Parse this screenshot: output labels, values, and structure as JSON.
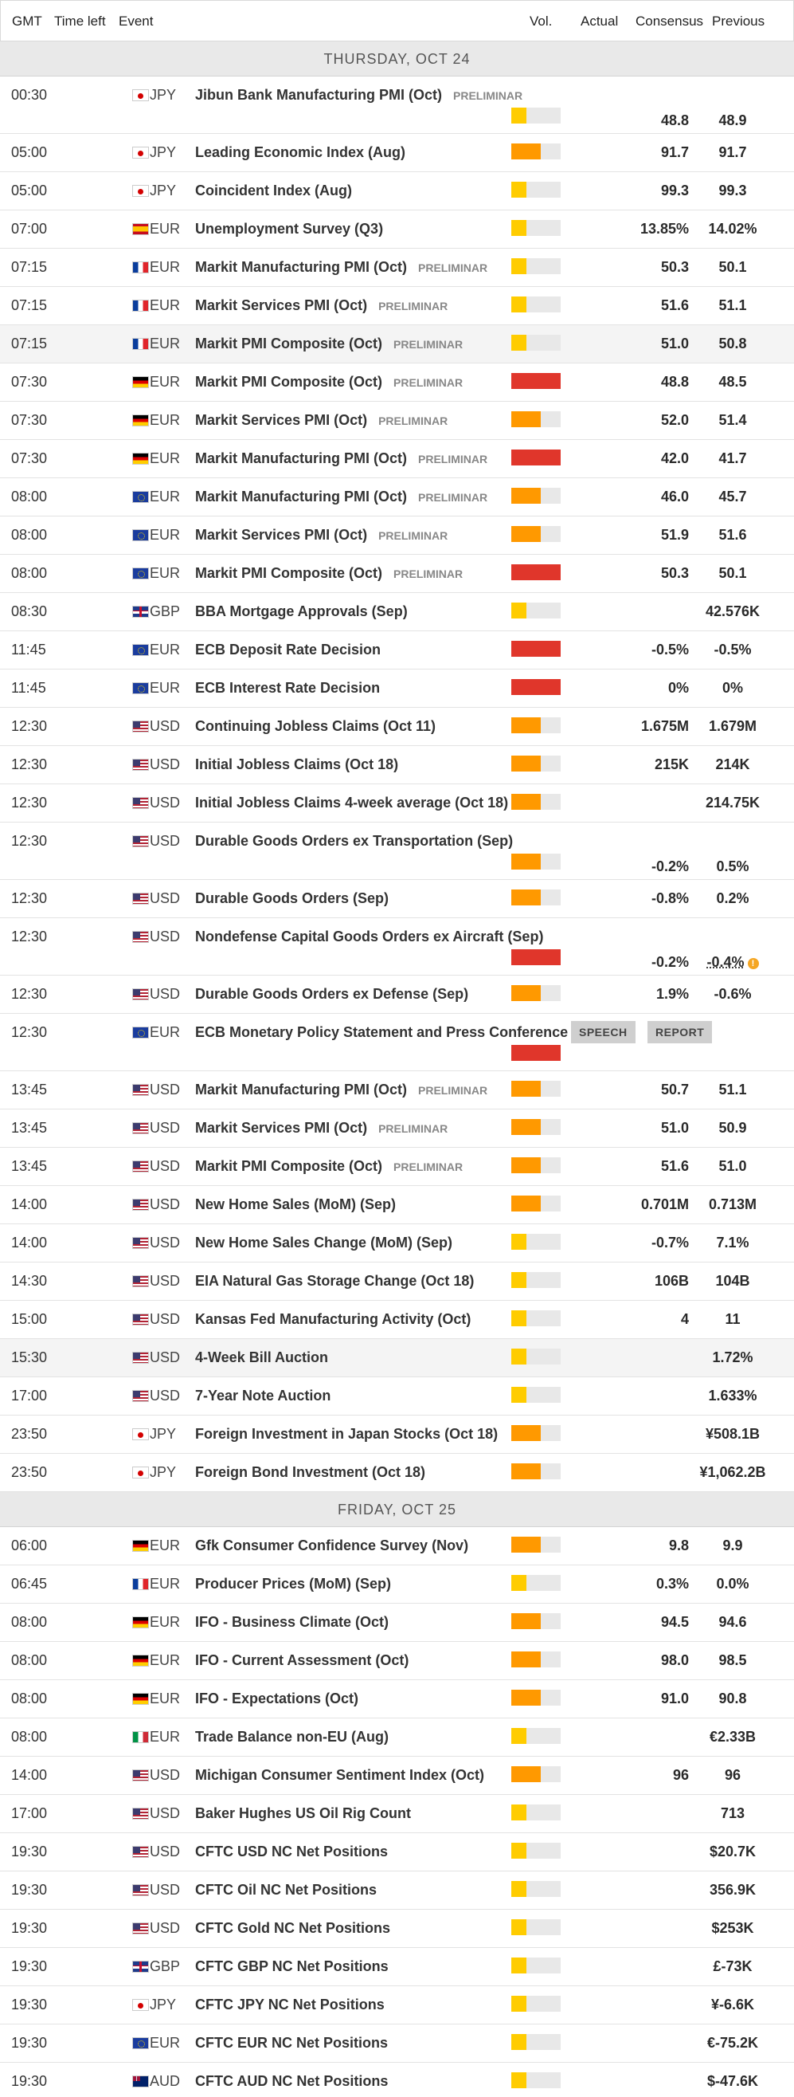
{
  "header": {
    "gmt": "GMT",
    "time_left": "Time left",
    "event": "Event",
    "vol": "Vol.",
    "actual": "Actual",
    "consensus": "Consensus",
    "previous": "Previous"
  },
  "colors": {
    "high": "#e0362b",
    "medium": "#ff9900",
    "low": "#ffcc00",
    "empty": "#e8e8e8"
  },
  "days": [
    {
      "label": "THURSDAY, OCT 24",
      "rows": [
        {
          "time": "00:30",
          "flag": "jp-flag",
          "cur": "JPY",
          "event": "Jibun Bank Manufacturing PMI (Oct)",
          "tag": "PRELIMINAR",
          "vol": "low",
          "actual": "",
          "consensus": "48.8",
          "previous": "48.9",
          "tall": true
        },
        {
          "time": "05:00",
          "flag": "jp-flag",
          "cur": "JPY",
          "event": "Leading Economic Index (Aug)",
          "tag": "",
          "vol": "medium",
          "actual": "",
          "consensus": "91.7",
          "previous": "91.7"
        },
        {
          "time": "05:00",
          "flag": "jp-flag",
          "cur": "JPY",
          "event": "Coincident Index (Aug)",
          "tag": "",
          "vol": "low",
          "actual": "",
          "consensus": "99.3",
          "previous": "99.3"
        },
        {
          "time": "07:00",
          "flag": "es-flag",
          "cur": "EUR",
          "event": "Unemployment Survey (Q3)",
          "tag": "",
          "vol": "low",
          "actual": "",
          "consensus": "13.85%",
          "previous": "14.02%"
        },
        {
          "time": "07:15",
          "flag": "fr-flag",
          "cur": "EUR",
          "event": "Markit Manufacturing PMI (Oct)",
          "tag": "PRELIMINAR",
          "vol": "low",
          "actual": "",
          "consensus": "50.3",
          "previous": "50.1"
        },
        {
          "time": "07:15",
          "flag": "fr-flag",
          "cur": "EUR",
          "event": "Markit Services PMI (Oct)",
          "tag": "PRELIMINAR",
          "vol": "low",
          "actual": "",
          "consensus": "51.6",
          "previous": "51.1"
        },
        {
          "time": "07:15",
          "flag": "fr-flag",
          "cur": "EUR",
          "event": "Markit PMI Composite (Oct)",
          "tag": "PRELIMINAR",
          "vol": "low",
          "actual": "",
          "consensus": "51.0",
          "previous": "50.8",
          "alt": true
        },
        {
          "time": "07:30",
          "flag": "de-flag",
          "cur": "EUR",
          "event": "Markit PMI Composite (Oct)",
          "tag": "PRELIMINAR",
          "vol": "high",
          "actual": "",
          "consensus": "48.8",
          "previous": "48.5"
        },
        {
          "time": "07:30",
          "flag": "de-flag",
          "cur": "EUR",
          "event": "Markit Services PMI (Oct)",
          "tag": "PRELIMINAR",
          "vol": "medium",
          "actual": "",
          "consensus": "52.0",
          "previous": "51.4"
        },
        {
          "time": "07:30",
          "flag": "de-flag",
          "cur": "EUR",
          "event": "Markit Manufacturing PMI (Oct)",
          "tag": "PRELIMINAR",
          "vol": "high",
          "actual": "",
          "consensus": "42.0",
          "previous": "41.7"
        },
        {
          "time": "08:00",
          "flag": "eu-flag",
          "cur": "EUR",
          "event": "Markit Manufacturing PMI (Oct)",
          "tag": "PRELIMINAR",
          "vol": "medium",
          "actual": "",
          "consensus": "46.0",
          "previous": "45.7"
        },
        {
          "time": "08:00",
          "flag": "eu-flag",
          "cur": "EUR",
          "event": "Markit Services PMI (Oct)",
          "tag": "PRELIMINAR",
          "vol": "medium",
          "actual": "",
          "consensus": "51.9",
          "previous": "51.6"
        },
        {
          "time": "08:00",
          "flag": "eu-flag",
          "cur": "EUR",
          "event": "Markit PMI Composite (Oct)",
          "tag": "PRELIMINAR",
          "vol": "high",
          "actual": "",
          "consensus": "50.3",
          "previous": "50.1"
        },
        {
          "time": "08:30",
          "flag": "gb-flag",
          "cur": "GBP",
          "event": "BBA Mortgage Approvals (Sep)",
          "tag": "",
          "vol": "low",
          "actual": "",
          "consensus": "",
          "previous": "42.576K"
        },
        {
          "time": "11:45",
          "flag": "eu-flag",
          "cur": "EUR",
          "event": "ECB Deposit Rate Decision",
          "tag": "",
          "vol": "high",
          "actual": "",
          "consensus": "-0.5%",
          "previous": "-0.5%"
        },
        {
          "time": "11:45",
          "flag": "eu-flag",
          "cur": "EUR",
          "event": "ECB Interest Rate Decision",
          "tag": "",
          "vol": "high",
          "actual": "",
          "consensus": "0%",
          "previous": "0%"
        },
        {
          "time": "12:30",
          "flag": "us-flag",
          "cur": "USD",
          "event": "Continuing Jobless Claims (Oct 11)",
          "tag": "",
          "vol": "medium",
          "actual": "",
          "consensus": "1.675M",
          "previous": "1.679M"
        },
        {
          "time": "12:30",
          "flag": "us-flag",
          "cur": "USD",
          "event": "Initial Jobless Claims (Oct 18)",
          "tag": "",
          "vol": "medium",
          "actual": "",
          "consensus": "215K",
          "previous": "214K"
        },
        {
          "time": "12:30",
          "flag": "us-flag",
          "cur": "USD",
          "event": "Initial Jobless Claims 4-week average (Oct 18)",
          "tag": "",
          "vol": "medium",
          "actual": "",
          "consensus": "",
          "previous": "214.75K"
        },
        {
          "time": "12:30",
          "flag": "us-flag",
          "cur": "USD",
          "event": "Durable Goods Orders ex Transportation (Sep)",
          "tag": "",
          "vol": "medium",
          "actual": "",
          "consensus": "-0.2%",
          "previous": "0.5%",
          "tall": true
        },
        {
          "time": "12:30",
          "flag": "us-flag",
          "cur": "USD",
          "event": "Durable Goods Orders (Sep)",
          "tag": "",
          "vol": "medium",
          "actual": "",
          "consensus": "-0.8%",
          "previous": "0.2%"
        },
        {
          "time": "12:30",
          "flag": "us-flag",
          "cur": "USD",
          "event": "Nondefense Capital Goods Orders ex Aircraft (Sep)",
          "tag": "",
          "vol": "high",
          "actual": "",
          "consensus": "-0.2%",
          "previous": "-0.4%",
          "revised": true,
          "tall": true
        },
        {
          "time": "12:30",
          "flag": "us-flag",
          "cur": "USD",
          "event": "Durable Goods Orders ex Defense (Sep)",
          "tag": "",
          "vol": "medium",
          "actual": "",
          "consensus": "1.9%",
          "previous": "-0.6%"
        },
        {
          "time": "12:30",
          "flag": "eu-flag",
          "cur": "EUR",
          "event": "ECB Monetary Policy Statement and Press Conference",
          "tag": "",
          "vol": "high",
          "actual": "",
          "consensus": "",
          "previous": "",
          "tall": true,
          "buttons": [
            "SPEECH",
            "REPORT"
          ]
        },
        {
          "time": "13:45",
          "flag": "us-flag",
          "cur": "USD",
          "event": "Markit Manufacturing PMI (Oct)",
          "tag": "PRELIMINAR",
          "vol": "medium",
          "actual": "",
          "consensus": "50.7",
          "previous": "51.1"
        },
        {
          "time": "13:45",
          "flag": "us-flag",
          "cur": "USD",
          "event": "Markit Services PMI (Oct)",
          "tag": "PRELIMINAR",
          "vol": "medium",
          "actual": "",
          "consensus": "51.0",
          "previous": "50.9"
        },
        {
          "time": "13:45",
          "flag": "us-flag",
          "cur": "USD",
          "event": "Markit PMI Composite (Oct)",
          "tag": "PRELIMINAR",
          "vol": "medium",
          "actual": "",
          "consensus": "51.6",
          "previous": "51.0"
        },
        {
          "time": "14:00",
          "flag": "us-flag",
          "cur": "USD",
          "event": "New Home Sales (MoM) (Sep)",
          "tag": "",
          "vol": "medium",
          "actual": "",
          "consensus": "0.701M",
          "previous": "0.713M"
        },
        {
          "time": "14:00",
          "flag": "us-flag",
          "cur": "USD",
          "event": "New Home Sales Change (MoM) (Sep)",
          "tag": "",
          "vol": "low",
          "actual": "",
          "consensus": "-0.7%",
          "previous": "7.1%"
        },
        {
          "time": "14:30",
          "flag": "us-flag",
          "cur": "USD",
          "event": "EIA Natural Gas Storage Change (Oct 18)",
          "tag": "",
          "vol": "low",
          "actual": "",
          "consensus": "106B",
          "previous": "104B"
        },
        {
          "time": "15:00",
          "flag": "us-flag",
          "cur": "USD",
          "event": "Kansas Fed Manufacturing Activity (Oct)",
          "tag": "",
          "vol": "low",
          "actual": "",
          "consensus": "4",
          "previous": "11"
        },
        {
          "time": "15:30",
          "flag": "us-flag",
          "cur": "USD",
          "event": "4-Week Bill Auction",
          "tag": "",
          "vol": "low",
          "actual": "",
          "consensus": "",
          "previous": "1.72%",
          "alt": true
        },
        {
          "time": "17:00",
          "flag": "us-flag",
          "cur": "USD",
          "event": "7-Year Note Auction",
          "tag": "",
          "vol": "low",
          "actual": "",
          "consensus": "",
          "previous": "1.633%"
        },
        {
          "time": "23:50",
          "flag": "jp-flag",
          "cur": "JPY",
          "event": "Foreign Investment in Japan Stocks (Oct 18)",
          "tag": "",
          "vol": "medium",
          "actual": "",
          "consensus": "",
          "previous": "¥508.1B"
        },
        {
          "time": "23:50",
          "flag": "jp-flag",
          "cur": "JPY",
          "event": "Foreign Bond Investment (Oct 18)",
          "tag": "",
          "vol": "medium",
          "actual": "",
          "consensus": "",
          "previous": "¥1,062.2B"
        }
      ]
    },
    {
      "label": "FRIDAY, OCT 25",
      "rows": [
        {
          "time": "06:00",
          "flag": "de-flag",
          "cur": "EUR",
          "event": "Gfk Consumer Confidence Survey (Nov)",
          "tag": "",
          "vol": "medium",
          "actual": "",
          "consensus": "9.8",
          "previous": "9.9"
        },
        {
          "time": "06:45",
          "flag": "fr-flag",
          "cur": "EUR",
          "event": "Producer Prices (MoM) (Sep)",
          "tag": "",
          "vol": "low",
          "actual": "",
          "consensus": "0.3%",
          "previous": "0.0%"
        },
        {
          "time": "08:00",
          "flag": "de-flag",
          "cur": "EUR",
          "event": "IFO - Business Climate (Oct)",
          "tag": "",
          "vol": "medium",
          "actual": "",
          "consensus": "94.5",
          "previous": "94.6"
        },
        {
          "time": "08:00",
          "flag": "de-flag",
          "cur": "EUR",
          "event": "IFO - Current Assessment (Oct)",
          "tag": "",
          "vol": "medium",
          "actual": "",
          "consensus": "98.0",
          "previous": "98.5"
        },
        {
          "time": "08:00",
          "flag": "de-flag",
          "cur": "EUR",
          "event": "IFO - Expectations (Oct)",
          "tag": "",
          "vol": "medium",
          "actual": "",
          "consensus": "91.0",
          "previous": "90.8"
        },
        {
          "time": "08:00",
          "flag": "it-flag",
          "cur": "EUR",
          "event": "Trade Balance non-EU (Aug)",
          "tag": "",
          "vol": "low",
          "actual": "",
          "consensus": "",
          "previous": "€2.33B"
        },
        {
          "time": "14:00",
          "flag": "us-flag",
          "cur": "USD",
          "event": "Michigan Consumer Sentiment Index (Oct)",
          "tag": "",
          "vol": "medium",
          "actual": "",
          "consensus": "96",
          "previous": "96"
        },
        {
          "time": "17:00",
          "flag": "us-flag",
          "cur": "USD",
          "event": "Baker Hughes US Oil Rig Count",
          "tag": "",
          "vol": "low",
          "actual": "",
          "consensus": "",
          "previous": "713"
        },
        {
          "time": "19:30",
          "flag": "us-flag",
          "cur": "USD",
          "event": "CFTC USD NC Net Positions",
          "tag": "",
          "vol": "low",
          "actual": "",
          "consensus": "",
          "previous": "$20.7K"
        },
        {
          "time": "19:30",
          "flag": "us-flag",
          "cur": "USD",
          "event": "CFTC Oil NC Net Positions",
          "tag": "",
          "vol": "low",
          "actual": "",
          "consensus": "",
          "previous": "356.9K"
        },
        {
          "time": "19:30",
          "flag": "us-flag",
          "cur": "USD",
          "event": "CFTC Gold NC Net Positions",
          "tag": "",
          "vol": "low",
          "actual": "",
          "consensus": "",
          "previous": "$253K"
        },
        {
          "time": "19:30",
          "flag": "gb-flag",
          "cur": "GBP",
          "event": "CFTC GBP NC Net Positions",
          "tag": "",
          "vol": "low",
          "actual": "",
          "consensus": "",
          "previous": "£-73K"
        },
        {
          "time": "19:30",
          "flag": "jp-flag",
          "cur": "JPY",
          "event": "CFTC JPY NC Net Positions",
          "tag": "",
          "vol": "low",
          "actual": "",
          "consensus": "",
          "previous": "¥-6.6K"
        },
        {
          "time": "19:30",
          "flag": "eu-flag",
          "cur": "EUR",
          "event": "CFTC EUR NC Net Positions",
          "tag": "",
          "vol": "low",
          "actual": "",
          "consensus": "",
          "previous": "€-75.2K"
        },
        {
          "time": "19:30",
          "flag": "au-flag",
          "cur": "AUD",
          "event": "CFTC AUD NC Net Positions",
          "tag": "",
          "vol": "low",
          "actual": "",
          "consensus": "",
          "previous": "$-47.6K"
        }
      ]
    }
  ]
}
